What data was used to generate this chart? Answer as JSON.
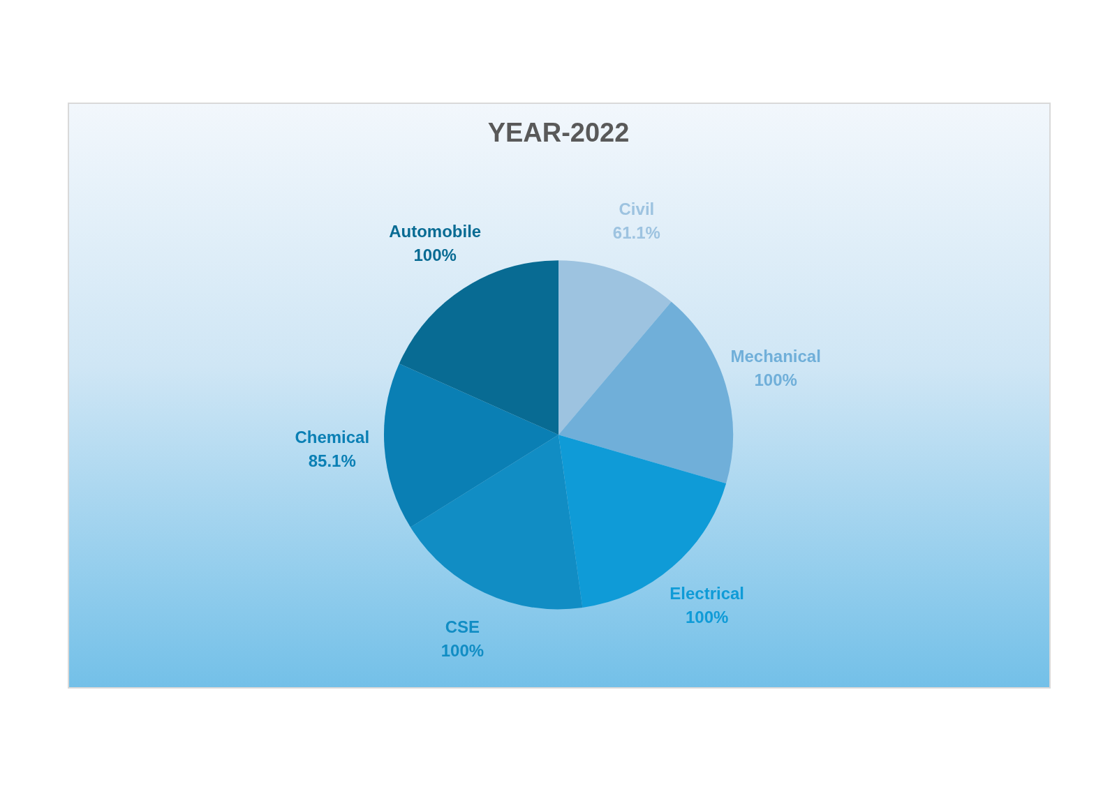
{
  "chart_data": {
    "type": "pie",
    "title": "YEAR-2022",
    "categories": [
      "Civil",
      "Mechanical",
      "Electrical",
      "CSE",
      "Chemical",
      "Automobile"
    ],
    "values": [
      61.1,
      100,
      100,
      100,
      85.1,
      100
    ],
    "value_labels": [
      "61.1%",
      "100%",
      "100%",
      "100%",
      "85.1%",
      "100%"
    ],
    "colors": [
      "#9dc3e0",
      "#70afd9",
      "#0f9bd7",
      "#118dc4",
      "#0a7fb4",
      "#086b93"
    ],
    "legend": false
  }
}
